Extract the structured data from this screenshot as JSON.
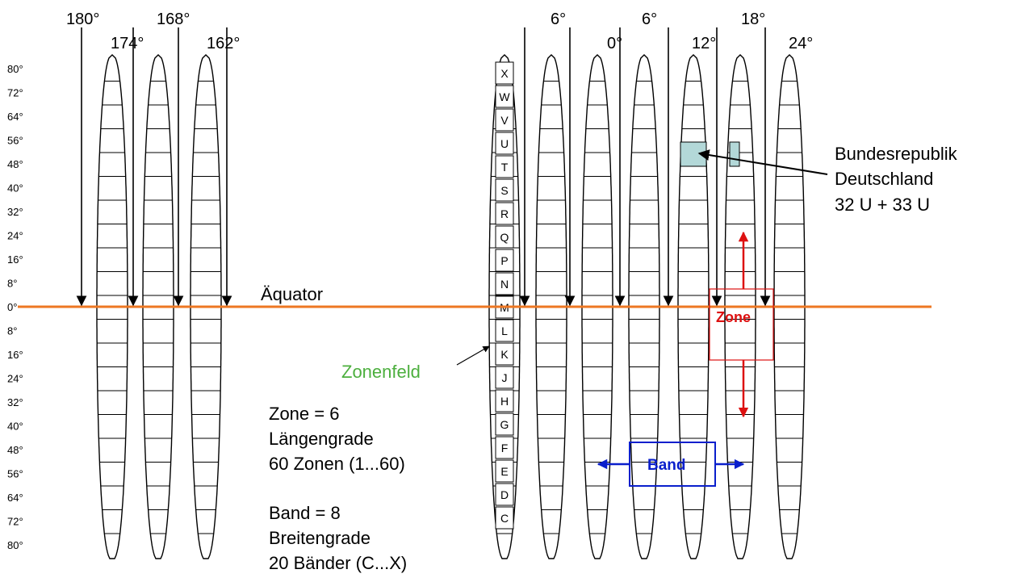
{
  "longitude_labels": [
    "180°",
    "174°",
    "168°",
    "162°",
    "6°",
    "0°",
    "6°",
    "12°",
    "18°",
    "24°"
  ],
  "latitude_labels": [
    "80°",
    "72°",
    "64°",
    "56°",
    "48°",
    "40°",
    "32°",
    "24°",
    "16°",
    "8°",
    "0°",
    "8°",
    "16°",
    "24°",
    "32°",
    "40°",
    "48°",
    "56°",
    "64°",
    "72°",
    "80°"
  ],
  "band_letters": [
    "X",
    "W",
    "V",
    "U",
    "T",
    "S",
    "R",
    "Q",
    "P",
    "N",
    "M",
    "L",
    "K",
    "J",
    "H",
    "G",
    "F",
    "E",
    "D",
    "C"
  ],
  "equator_label": "Äquator",
  "zonenfeld_label": "Zonenfeld",
  "zone_label": "Zone",
  "band_label": "Band",
  "germany_callout": [
    "Bundesrepublik",
    "Deutschland",
    "32 U + 33 U"
  ],
  "legend_zone": [
    "Zone = 6",
    "Längengrade",
    "60 Zonen (1...60)"
  ],
  "legend_band": [
    "Band = 8",
    "Breitengrade",
    "20 Bänder (C...X)"
  ],
  "colors": {
    "equator": "#ee7722",
    "zone_annotation": "#dd1111",
    "band_annotation": "#0a1fcc",
    "zonenfeld_text": "#4caf3e",
    "germany_fill": "#b3d8d8"
  }
}
